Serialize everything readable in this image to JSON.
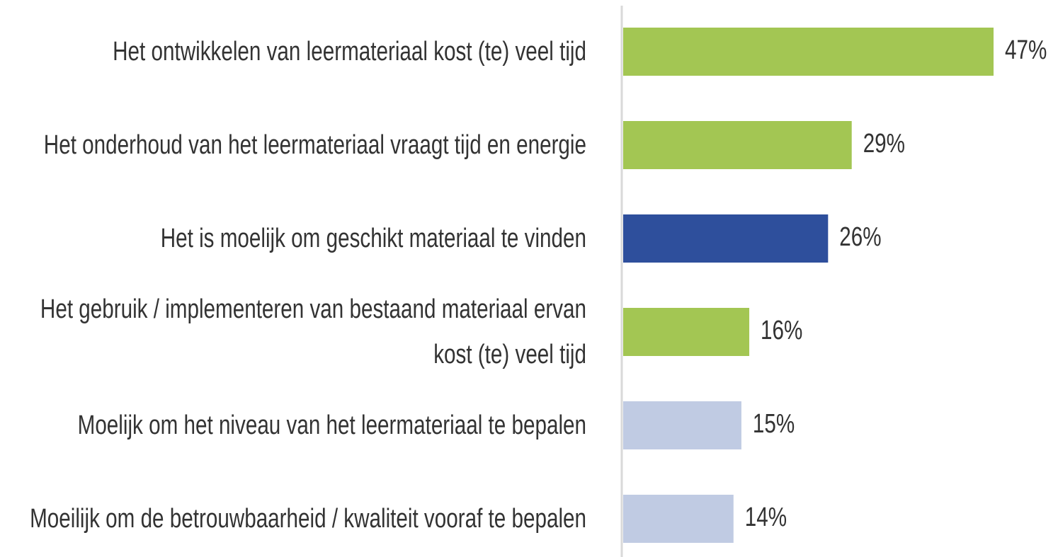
{
  "chart_data": {
    "type": "bar",
    "orientation": "horizontal",
    "categories": [
      "Het ontwikkelen van leermateriaal kost (te) veel tijd",
      "Het onderhoud van het leermateriaal vraagt tijd en energie",
      "Het is moelijk om geschikt materiaal te vinden",
      "Het gebruik / implementeren van bestaand materiaal ervan kost (te) veel tijd",
      "Moelijk om het niveau van het leermateriaal te bepalen",
      "Moeilijk om de betrouwbaarheid / kwaliteit vooraf te bepalen"
    ],
    "values": [
      47,
      29,
      26,
      16,
      15,
      14
    ],
    "value_labels": [
      "47%",
      "29%",
      "26%",
      "16%",
      "15%",
      "14%"
    ],
    "colors": [
      "#a3c653",
      "#a3c653",
      "#2e4f9c",
      "#a3c653",
      "#c0cbe3",
      "#c0cbe3"
    ]
  }
}
